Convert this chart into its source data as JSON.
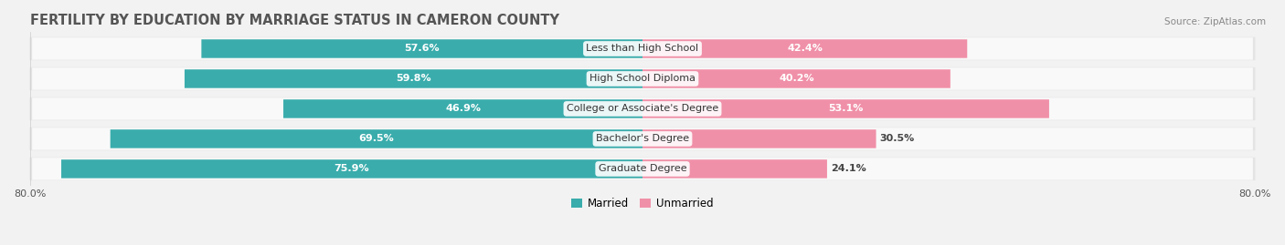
{
  "title": "FERTILITY BY EDUCATION BY MARRIAGE STATUS IN CAMERON COUNTY",
  "source": "Source: ZipAtlas.com",
  "categories": [
    "Less than High School",
    "High School Diploma",
    "College or Associate's Degree",
    "Bachelor's Degree",
    "Graduate Degree"
  ],
  "married_values": [
    57.6,
    59.8,
    46.9,
    69.5,
    75.9
  ],
  "unmarried_values": [
    42.4,
    40.2,
    53.1,
    30.5,
    24.1
  ],
  "married_color": "#3AACAC",
  "unmarried_color": "#F090A8",
  "married_label": "Married",
  "unmarried_label": "Unmarried",
  "xlim": 80.0,
  "bar_height": 0.62,
  "background_color": "#f2f2f2",
  "row_background_color": "#e8e8e8",
  "title_fontsize": 10.5,
  "source_fontsize": 7.5,
  "label_fontsize": 8,
  "tick_fontsize": 8,
  "category_fontsize": 8
}
